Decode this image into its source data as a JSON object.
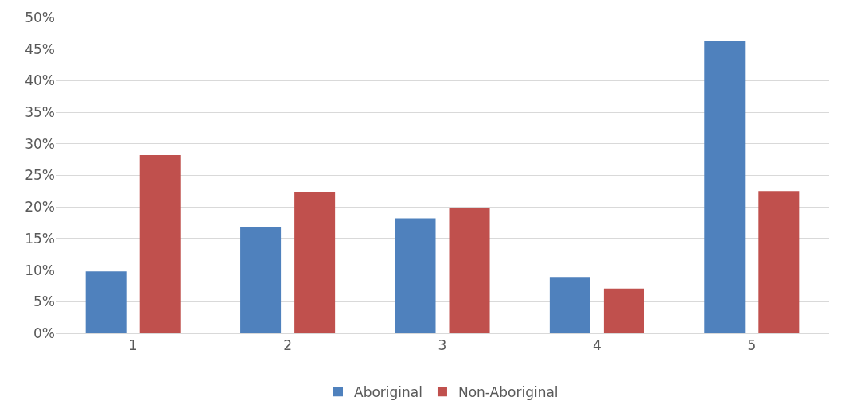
{
  "chart_data": {
    "type": "bar",
    "categories": [
      "1",
      "2",
      "3",
      "4",
      "5"
    ],
    "series": [
      {
        "name": "Aboriginal",
        "color": "#4f81bd",
        "values": [
          9.8,
          16.8,
          18.2,
          8.9,
          46.3
        ]
      },
      {
        "name": "Non-Aboriginal",
        "color": "#c0504d",
        "values": [
          28.2,
          22.3,
          19.8,
          7.1,
          22.5
        ]
      }
    ],
    "ylim": [
      0,
      50
    ],
    "yticks": [
      {
        "value": 0,
        "label": "0%"
      },
      {
        "value": 5,
        "label": "5%"
      },
      {
        "value": 10,
        "label": "10%"
      },
      {
        "value": 15,
        "label": "15%"
      },
      {
        "value": 20,
        "label": "20%"
      },
      {
        "value": 25,
        "label": "25%"
      },
      {
        "value": 30,
        "label": "30%"
      },
      {
        "value": 35,
        "label": "35%"
      },
      {
        "value": 40,
        "label": "40%"
      },
      {
        "value": 45,
        "label": "45%"
      },
      {
        "value": 50,
        "label": "50%"
      }
    ],
    "grid": "y",
    "legend": "bottom"
  }
}
